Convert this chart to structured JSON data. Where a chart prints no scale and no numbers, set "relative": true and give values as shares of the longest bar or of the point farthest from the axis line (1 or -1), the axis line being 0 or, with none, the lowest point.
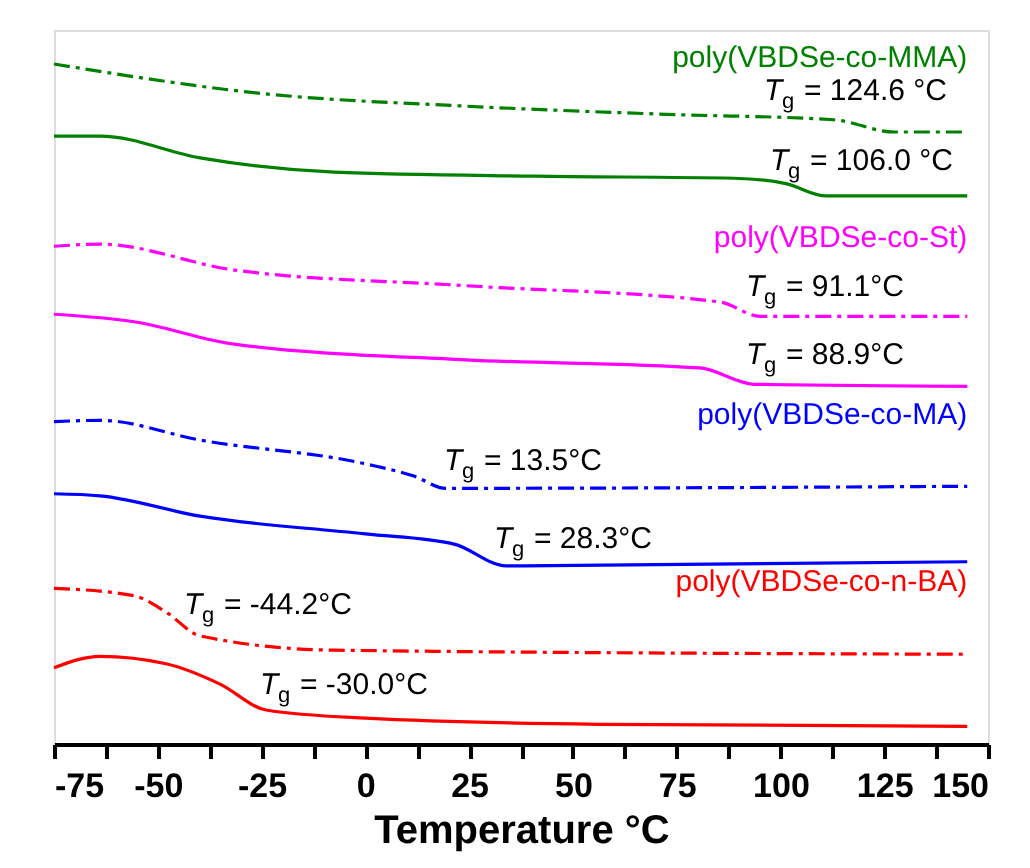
{
  "chart_data": {
    "type": "line",
    "relative": true,
    "xlabel": "Temperature °C",
    "xlim": [
      -75,
      150
    ],
    "xticks": [
      -75,
      {
        "value": -62.5,
        "label": null
      },
      -50,
      {
        "value": -37.5,
        "label": null
      },
      -25,
      {
        "value": -12.5,
        "label": null
      },
      0,
      {
        "value": 12.5,
        "label": null
      },
      25,
      {
        "value": 37.5,
        "label": null
      },
      50,
      {
        "value": 62.5,
        "label": null
      },
      75,
      {
        "value": 87.5,
        "label": null
      },
      100,
      {
        "value": 112.5,
        "label": null
      },
      125,
      {
        "value": 137.5,
        "label": null
      },
      150
    ],
    "grid": false,
    "legend": false,
    "marker": "none",
    "series": [
      {
        "name": "poly(VBDSe-co-MMA)",
        "color": "#008000",
        "line_style": "dashed",
        "x": [
          -75,
          -23.9,
          24.2,
          72.4,
          112.9,
          127.4,
          145
        ],
        "values": [
          1.0,
          0.956,
          0.938,
          0.926,
          0.918,
          0.9,
          0.9
        ]
      },
      {
        "color": "#008000",
        "line_style": "solid",
        "x": [
          -75,
          -63.9,
          -39.8,
          -7.5,
          40.6,
          88.8,
          101.3,
          111.0,
          145
        ],
        "values": [
          0.894,
          0.894,
          0.862,
          0.841,
          0.835,
          0.832,
          0.824,
          0.806,
          0.806
        ]
      },
      {
        "name": "poly(VBDSe-co-St)",
        "color": "#ff00ff",
        "line_style": "dashed",
        "x": [
          -75,
          -63.9,
          -31.6,
          24.2,
          85.4,
          95.1,
          145
        ],
        "values": [
          0.732,
          0.735,
          0.697,
          0.674,
          0.65,
          0.629,
          0.629
        ]
      },
      {
        "color": "#ff00ff",
        "line_style": "solid",
        "x": [
          -75,
          -55.7,
          -31.6,
          24.2,
          80.6,
          93.6,
          145
        ],
        "values": [
          0.632,
          0.621,
          0.588,
          0.565,
          0.553,
          0.529,
          0.526
        ]
      },
      {
        "name": "poly(VBDSe-co-MA)",
        "color": "#0000ff",
        "line_style": "dashed",
        "x": [
          -75,
          -63.9,
          -39.8,
          0,
          11.7,
          19.4,
          145
        ],
        "values": [
          0.474,
          0.476,
          0.447,
          0.412,
          0.394,
          0.376,
          0.379
        ]
      },
      {
        "color": "#0000ff",
        "line_style": "solid",
        "x": [
          -75,
          -63.9,
          -39.8,
          0,
          21.4,
          33.9,
          145
        ],
        "values": [
          0.368,
          0.365,
          0.335,
          0.309,
          0.294,
          0.262,
          0.268
        ]
      },
      {
        "name": "poly(VBDSe-co-n-BA)",
        "color": "#ff0000",
        "line_style": "dashed",
        "x": [
          -75,
          -55.7,
          -48.0,
          -39.8,
          -7.5,
          145
        ],
        "values": [
          0.229,
          0.218,
          0.194,
          0.159,
          0.138,
          0.132
        ]
      },
      {
        "color": "#ff0000",
        "line_style": "solid",
        "x": [
          -75,
          -63.9,
          -48.0,
          -35.0,
          -23.9,
          0,
          56.5,
          145
        ],
        "values": [
          0.112,
          0.129,
          0.118,
          0.088,
          0.05,
          0.038,
          0.029,
          0.026
        ]
      }
    ],
    "annotations": [
      "T$_{g}$ = 124.6 °C",
      "T$_{g}$ = 106.0 °C",
      "T$_{g}$ = 91.1°C",
      "T$_{g}$ = 88.9°C",
      "T$_{g}$ = 13.5°C",
      "T$_{g}$ = 28.3°C",
      "T$_{g}$ = -44.2°C",
      "T$_{g}$ = -30.0°C"
    ]
  }
}
